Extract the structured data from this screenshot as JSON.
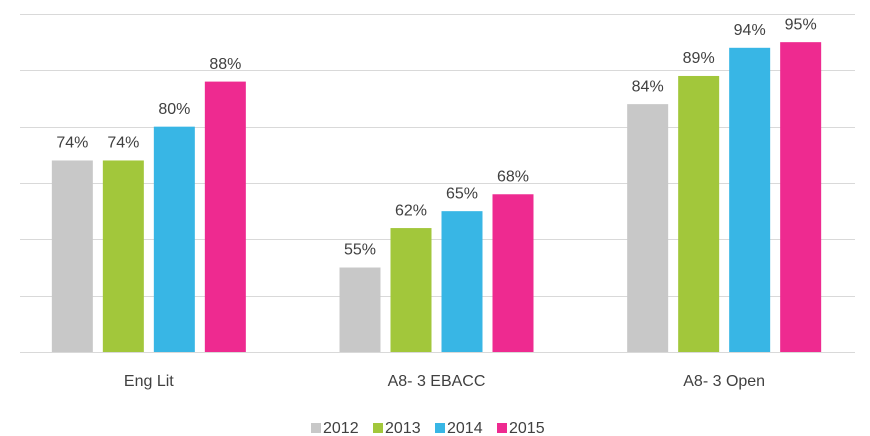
{
  "chart_data": {
    "type": "bar",
    "categories": [
      "Eng Lit",
      "A8- 3 EBACC",
      "A8- 3 Open"
    ],
    "series": [
      {
        "name": "2012",
        "color": "#c8c8c8",
        "values": [
          74,
          55,
          84
        ],
        "value_labels": [
          "74%",
          "55%",
          "84%"
        ]
      },
      {
        "name": "2013",
        "color": "#a2c73b",
        "values": [
          74,
          62,
          89
        ],
        "value_labels": [
          "74%",
          "62%",
          "89%"
        ]
      },
      {
        "name": "2014",
        "color": "#38b6e5",
        "values": [
          80,
          65,
          94
        ],
        "value_labels": [
          "80%",
          "65%",
          "94%"
        ]
      },
      {
        "name": "2015",
        "color": "#ee2a90",
        "values": [
          88,
          68,
          95
        ],
        "value_labels": [
          "88%",
          "68%",
          "95%"
        ]
      }
    ],
    "ylim": [
      40,
      100
    ],
    "yticks": [
      40,
      50,
      60,
      70,
      80,
      90,
      100
    ],
    "grid": true,
    "legend": "bottom"
  }
}
